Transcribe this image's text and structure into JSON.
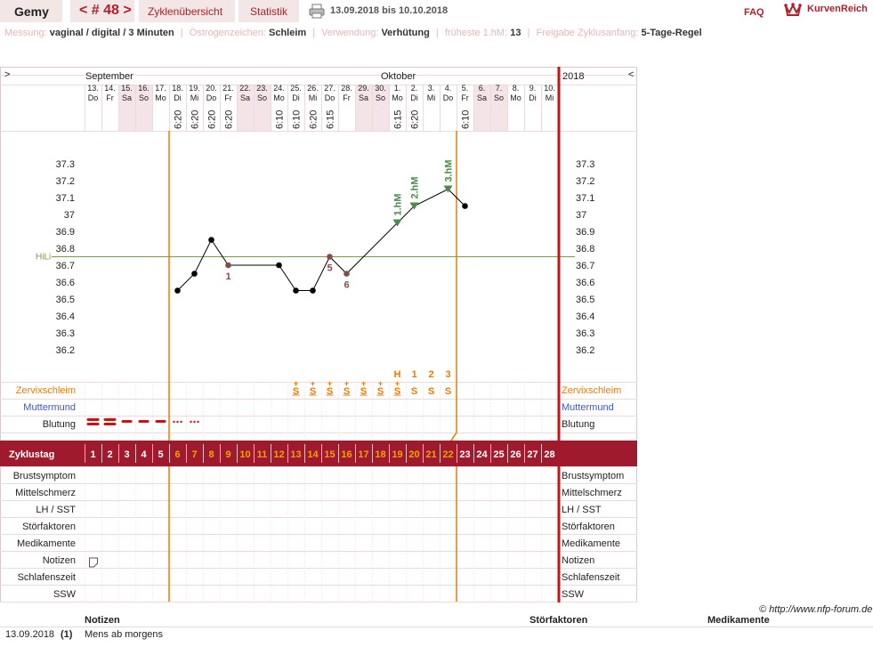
{
  "header": {
    "user_name": "Gemy",
    "cycle_nav": "< # 48 >",
    "tab_overview": "Zyklenübersicht",
    "tab_stats": "Statistik",
    "date_range": "13.09.2018 bis 10.10.2018",
    "faq": "FAQ",
    "brand": "KurvenReich"
  },
  "info": {
    "measure_label": "Messung:",
    "measure_value": "vaginal / digital / 3 Minuten",
    "estrogen_label": "Östrogenzeichen:",
    "estrogen_value": "Schleim",
    "usage_label": "Verwendung:",
    "usage_value": "Verhütung",
    "earliest_label": "früheste 1.hM:",
    "earliest_value": "13",
    "release_label": "Freigabe Zyklusanfang:",
    "release_value": "5-Tage-Regel"
  },
  "chart": {
    "left_arrow": ">",
    "right_arrow": "<",
    "month_sep": "September",
    "month_oct": "Oktober",
    "year": "2018",
    "hili_label": "HiLi",
    "temp_ticks": [
      "37.3",
      "37.2",
      "37.1",
      "37",
      "36.9",
      "36.8",
      "36.7",
      "36.6",
      "36.5",
      "36.4",
      "36.3",
      "36.2"
    ],
    "days": [
      {
        "d": "13.",
        "w": "Do",
        "t": "",
        "we": false
      },
      {
        "d": "14.",
        "w": "Fr",
        "t": "",
        "we": false
      },
      {
        "d": "15.",
        "w": "Sa",
        "t": "",
        "we": true
      },
      {
        "d": "16.",
        "w": "So",
        "t": "",
        "we": true
      },
      {
        "d": "17.",
        "w": "Mo",
        "t": "",
        "we": false
      },
      {
        "d": "18.",
        "w": "Di",
        "t": "6:20",
        "we": false
      },
      {
        "d": "19.",
        "w": "Mi",
        "t": "6:20",
        "we": false
      },
      {
        "d": "20.",
        "w": "Do",
        "t": "6:20",
        "we": false
      },
      {
        "d": "21.",
        "w": "Fr",
        "t": "6:20",
        "we": false
      },
      {
        "d": "22.",
        "w": "Sa",
        "t": "",
        "we": true
      },
      {
        "d": "23.",
        "w": "So",
        "t": "",
        "we": true
      },
      {
        "d": "24.",
        "w": "Mo",
        "t": "6:10",
        "we": false
      },
      {
        "d": "25.",
        "w": "Di",
        "t": "6:10",
        "we": false
      },
      {
        "d": "26.",
        "w": "Mi",
        "t": "6:20",
        "we": false
      },
      {
        "d": "27.",
        "w": "Do",
        "t": "6:15",
        "we": false
      },
      {
        "d": "28.",
        "w": "Fr",
        "t": "",
        "we": false
      },
      {
        "d": "29.",
        "w": "Sa",
        "t": "",
        "we": true
      },
      {
        "d": "30.",
        "w": "So",
        "t": "",
        "we": true
      },
      {
        "d": "1.",
        "w": "Mo",
        "t": "6:15",
        "we": false
      },
      {
        "d": "2.",
        "w": "Di",
        "t": "6:20",
        "we": false
      },
      {
        "d": "3.",
        "w": "Mi",
        "t": "",
        "we": false
      },
      {
        "d": "4.",
        "w": "Do",
        "t": "",
        "we": false
      },
      {
        "d": "5.",
        "w": "Fr",
        "t": "6:10",
        "we": false
      },
      {
        "d": "6.",
        "w": "Sa",
        "t": "",
        "we": true
      },
      {
        "d": "7.",
        "w": "So",
        "t": "",
        "we": true
      },
      {
        "d": "8.",
        "w": "Mo",
        "t": "",
        "we": false
      },
      {
        "d": "9.",
        "w": "Di",
        "t": "",
        "we": false
      },
      {
        "d": "10.",
        "w": "Mi",
        "t": "",
        "we": false
      }
    ],
    "temps": [
      {
        "day": 6,
        "temp": 36.55
      },
      {
        "day": 7,
        "temp": 36.65
      },
      {
        "day": 8,
        "temp": 36.85
      },
      {
        "day": 9,
        "temp": 36.7,
        "excluded": true
      },
      {
        "day": 12,
        "temp": 36.7
      },
      {
        "day": 13,
        "temp": 36.55
      },
      {
        "day": 14,
        "temp": 36.55
      },
      {
        "day": 15,
        "temp": 36.75,
        "excluded": true
      },
      {
        "day": 16,
        "temp": 36.65,
        "excluded": true
      },
      {
        "day": 19,
        "temp": 36.95,
        "marker": true
      },
      {
        "day": 20,
        "temp": 37.05,
        "marker": true
      },
      {
        "day": 22,
        "temp": 37.15,
        "marker": true
      },
      {
        "day": 23,
        "temp": 37.05
      }
    ],
    "hili": 36.75,
    "point_labels": [
      {
        "day": 9,
        "text": "1"
      },
      {
        "day": 15,
        "text": "5"
      },
      {
        "day": 16,
        "text": "6"
      }
    ],
    "hm_labels": [
      {
        "day": 19,
        "text": "1.hM"
      },
      {
        "day": 20,
        "text": "2.hM"
      },
      {
        "day": 22,
        "text": "3.hM"
      }
    ],
    "peak_labels": [
      {
        "day": 19,
        "text": "H"
      },
      {
        "day": 20,
        "text": "1"
      },
      {
        "day": 21,
        "text": "2"
      },
      {
        "day": 22,
        "text": "3"
      }
    ],
    "mucus": [
      {
        "day": 13,
        "text": "S",
        "plus": true
      },
      {
        "day": 14,
        "text": "S",
        "plus": true
      },
      {
        "day": 15,
        "text": "S",
        "plus": true
      },
      {
        "day": 16,
        "text": "S",
        "plus": true
      },
      {
        "day": 17,
        "text": "S",
        "plus": true
      },
      {
        "day": 18,
        "text": "S",
        "plus": true
      },
      {
        "day": 19,
        "text": "S",
        "plus": true
      },
      {
        "day": 20,
        "text": "S",
        "plus": false
      },
      {
        "day": 21,
        "text": "S",
        "plus": false
      },
      {
        "day": 22,
        "text": "S",
        "plus": false
      }
    ],
    "bleeding": [
      {
        "day": 1,
        "kind": "heavy"
      },
      {
        "day": 2,
        "kind": "heavy"
      },
      {
        "day": 3,
        "kind": "medium"
      },
      {
        "day": 4,
        "kind": "medium"
      },
      {
        "day": 5,
        "kind": "medium"
      },
      {
        "day": 6,
        "kind": "spot"
      },
      {
        "day": 7,
        "kind": "spot"
      }
    ],
    "row_labels": {
      "mucus": "Zervixschleim",
      "cervix": "Muttermund",
      "bleeding": "Blutung",
      "cycleday": "Zyklustag",
      "breast": "Brustsymptom",
      "midpain": "Mittelschmerz",
      "lh": "LH / SST",
      "disturb": "Störfaktoren",
      "meds": "Medikamente",
      "notes": "Notizen",
      "sleep": "Schlafenszeit",
      "ssw": "SSW"
    },
    "colors": {
      "accent": "#9e1a2c",
      "orange": "#f07800",
      "hili": "#7a9a4a",
      "red_line": "#cc1111",
      "weekend": "#f4e4e8",
      "point": "#000000",
      "excluded": "#8a4a4a",
      "marker": "#4a8a4a"
    }
  },
  "footer": {
    "copyright": "© http://www.nfp-forum.de",
    "col_notes": "Notizen",
    "col_disturb": "Störfaktoren",
    "col_meds": "Medikamente",
    "note_date": "13.09.2018",
    "note_day": "(1)",
    "note_text": "Mens ab morgens"
  }
}
